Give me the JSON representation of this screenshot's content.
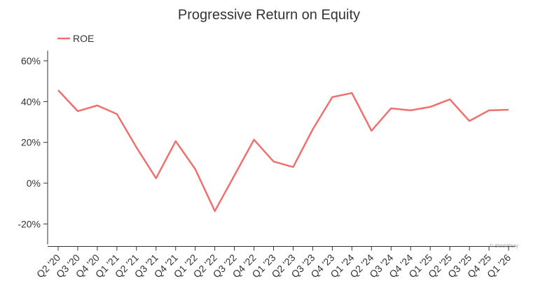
{
  "chart_data": {
    "type": "line",
    "title": "Progressive Return on Equity",
    "categories": [
      "Q2 '20",
      "Q3 '20",
      "Q4 '20",
      "Q1 '21",
      "Q2 '21",
      "Q3 '21",
      "Q4 '21",
      "Q1 '22",
      "Q2 '22",
      "Q3 '22",
      "Q4 '22",
      "Q1 '23",
      "Q2 '23",
      "Q3 '23",
      "Q4 '23",
      "Q1 '24",
      "Q2 '24",
      "Q3 '24",
      "Q4 '24",
      "Q1 '25",
      "Q2 '25",
      "Q3 '25",
      "Q4 '25",
      "Q1 '26"
    ],
    "series": [
      {
        "name": "ROE",
        "color": "#f07070",
        "values": [
          45.6,
          35.3,
          38.1,
          33.9,
          17.5,
          2.4,
          20.6,
          6.9,
          -13.7,
          3.8,
          21.3,
          10.6,
          7.9,
          26.4,
          42.2,
          44.2,
          25.7,
          36.7,
          35.7,
          37.4,
          41.1,
          30.5,
          35.7,
          36.0
        ]
      }
    ],
    "ylim": [
      -30,
      65
    ],
    "yticks": [
      {
        "value": -20,
        "label": "-20%"
      },
      {
        "value": 0,
        "label": "0%"
      },
      {
        "value": 20,
        "label": "20%"
      },
      {
        "value": 40,
        "label": "40%"
      },
      {
        "value": 60,
        "label": "60%"
      }
    ],
    "legend": "top-left",
    "watermark": "© StockStory"
  }
}
